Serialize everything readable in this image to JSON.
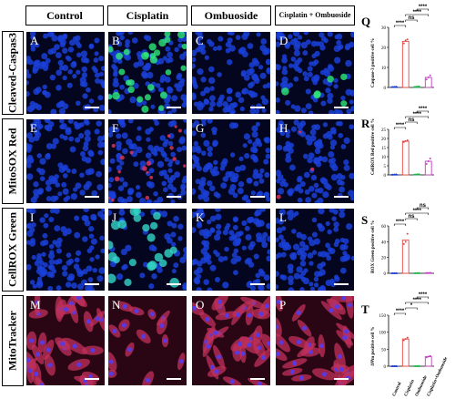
{
  "columns": [
    "Control",
    "Cisplatin",
    "Ombuoside",
    "Cisplatin + Ombuoside"
  ],
  "rows": [
    "Cleaved-Caspas3",
    "MitoSOX Red",
    "CellROX Green",
    "MitoTracker"
  ],
  "panel_letters": [
    "A",
    "B",
    "C",
    "D",
    "E",
    "F",
    "G",
    "H",
    "I",
    "J",
    "K",
    "L",
    "M",
    "N",
    "O",
    "P"
  ],
  "colors": {
    "nucleus": "#1a3fd8",
    "background": "#03061e",
    "green": "#2ee878",
    "red": "#e8365a",
    "cyan": "#34d6c8",
    "mito": "#c0305a",
    "bar_control": "#1f3fd6",
    "bar_cisplatin": "#e84545",
    "bar_ombuoside": "#22b14c",
    "bar_combo": "#c040c0"
  },
  "chart_data": [
    {
      "letter": "Q",
      "type": "bar",
      "ylabel": "Caspase-3 positive cell %",
      "categories": [
        "Control",
        "Cisplatin",
        "Ombuoside",
        "Cisplatin+Ombuoside"
      ],
      "values": [
        0.3,
        23,
        0.4,
        5
      ],
      "points": [
        [
          0.2,
          0.3,
          0.4
        ],
        [
          22,
          23.5,
          24
        ],
        [
          0.3,
          0.4,
          0.5
        ],
        [
          4,
          5,
          6
        ]
      ],
      "ylim": [
        0,
        30
      ],
      "yticks": [
        0,
        10,
        20,
        30
      ],
      "significance": [
        "****",
        "ns",
        "****",
        "****"
      ],
      "show_xlabels": false
    },
    {
      "letter": "R",
      "type": "bar",
      "ylabel": "CellROX Red positive cell %",
      "categories": [
        "Control",
        "Cisplatin",
        "Ombuoside",
        "Cisplatin+Ombuoside"
      ],
      "values": [
        0.2,
        18.5,
        0.3,
        7.5
      ],
      "points": [
        [
          0.1,
          0.2,
          0.3
        ],
        [
          18,
          18.5,
          19
        ],
        [
          0.2,
          0.3,
          0.4
        ],
        [
          6,
          7.5,
          9
        ]
      ],
      "ylim": [
        0,
        25
      ],
      "yticks": [
        0,
        5,
        10,
        15,
        20,
        25
      ],
      "significance": [
        "****",
        "ns",
        "****",
        "****"
      ],
      "show_xlabels": false
    },
    {
      "letter": "S",
      "type": "bar",
      "ylabel": "ROX Green positive cell %",
      "categories": [
        "Control",
        "Cisplatin",
        "Ombuoside",
        "Cisplatin+Ombuoside"
      ],
      "values": [
        0.2,
        42,
        0.3,
        0.5
      ],
      "points": [
        [
          0.1,
          0.2,
          0.3
        ],
        [
          37,
          40,
          50
        ],
        [
          0.2,
          0.3,
          0.4
        ],
        [
          0.4,
          0.5,
          0.6
        ]
      ],
      "ylim": [
        0,
        60
      ],
      "yticks": [
        0,
        20,
        40,
        60
      ],
      "significance": [
        "****",
        "ns",
        "****",
        "ns"
      ],
      "show_xlabels": false
    },
    {
      "letter": "T",
      "type": "bar",
      "ylabel": "ΔΨm positive cell %",
      "categories": [
        "Control",
        "Cisplatin",
        "Ombuoside",
        "Cisplatin+Ombuoside"
      ],
      "values": [
        0.3,
        80,
        0.5,
        28
      ],
      "points": [
        [
          0.2,
          0.3,
          0.4
        ],
        [
          76,
          80,
          84
        ],
        [
          0.4,
          0.5,
          0.6
        ],
        [
          26,
          28,
          30
        ]
      ],
      "ylim": [
        0,
        150
      ],
      "yticks": [
        0,
        50,
        100,
        150
      ],
      "significance": [
        "****",
        "*",
        "****",
        "****"
      ],
      "show_xlabels": true
    }
  ]
}
